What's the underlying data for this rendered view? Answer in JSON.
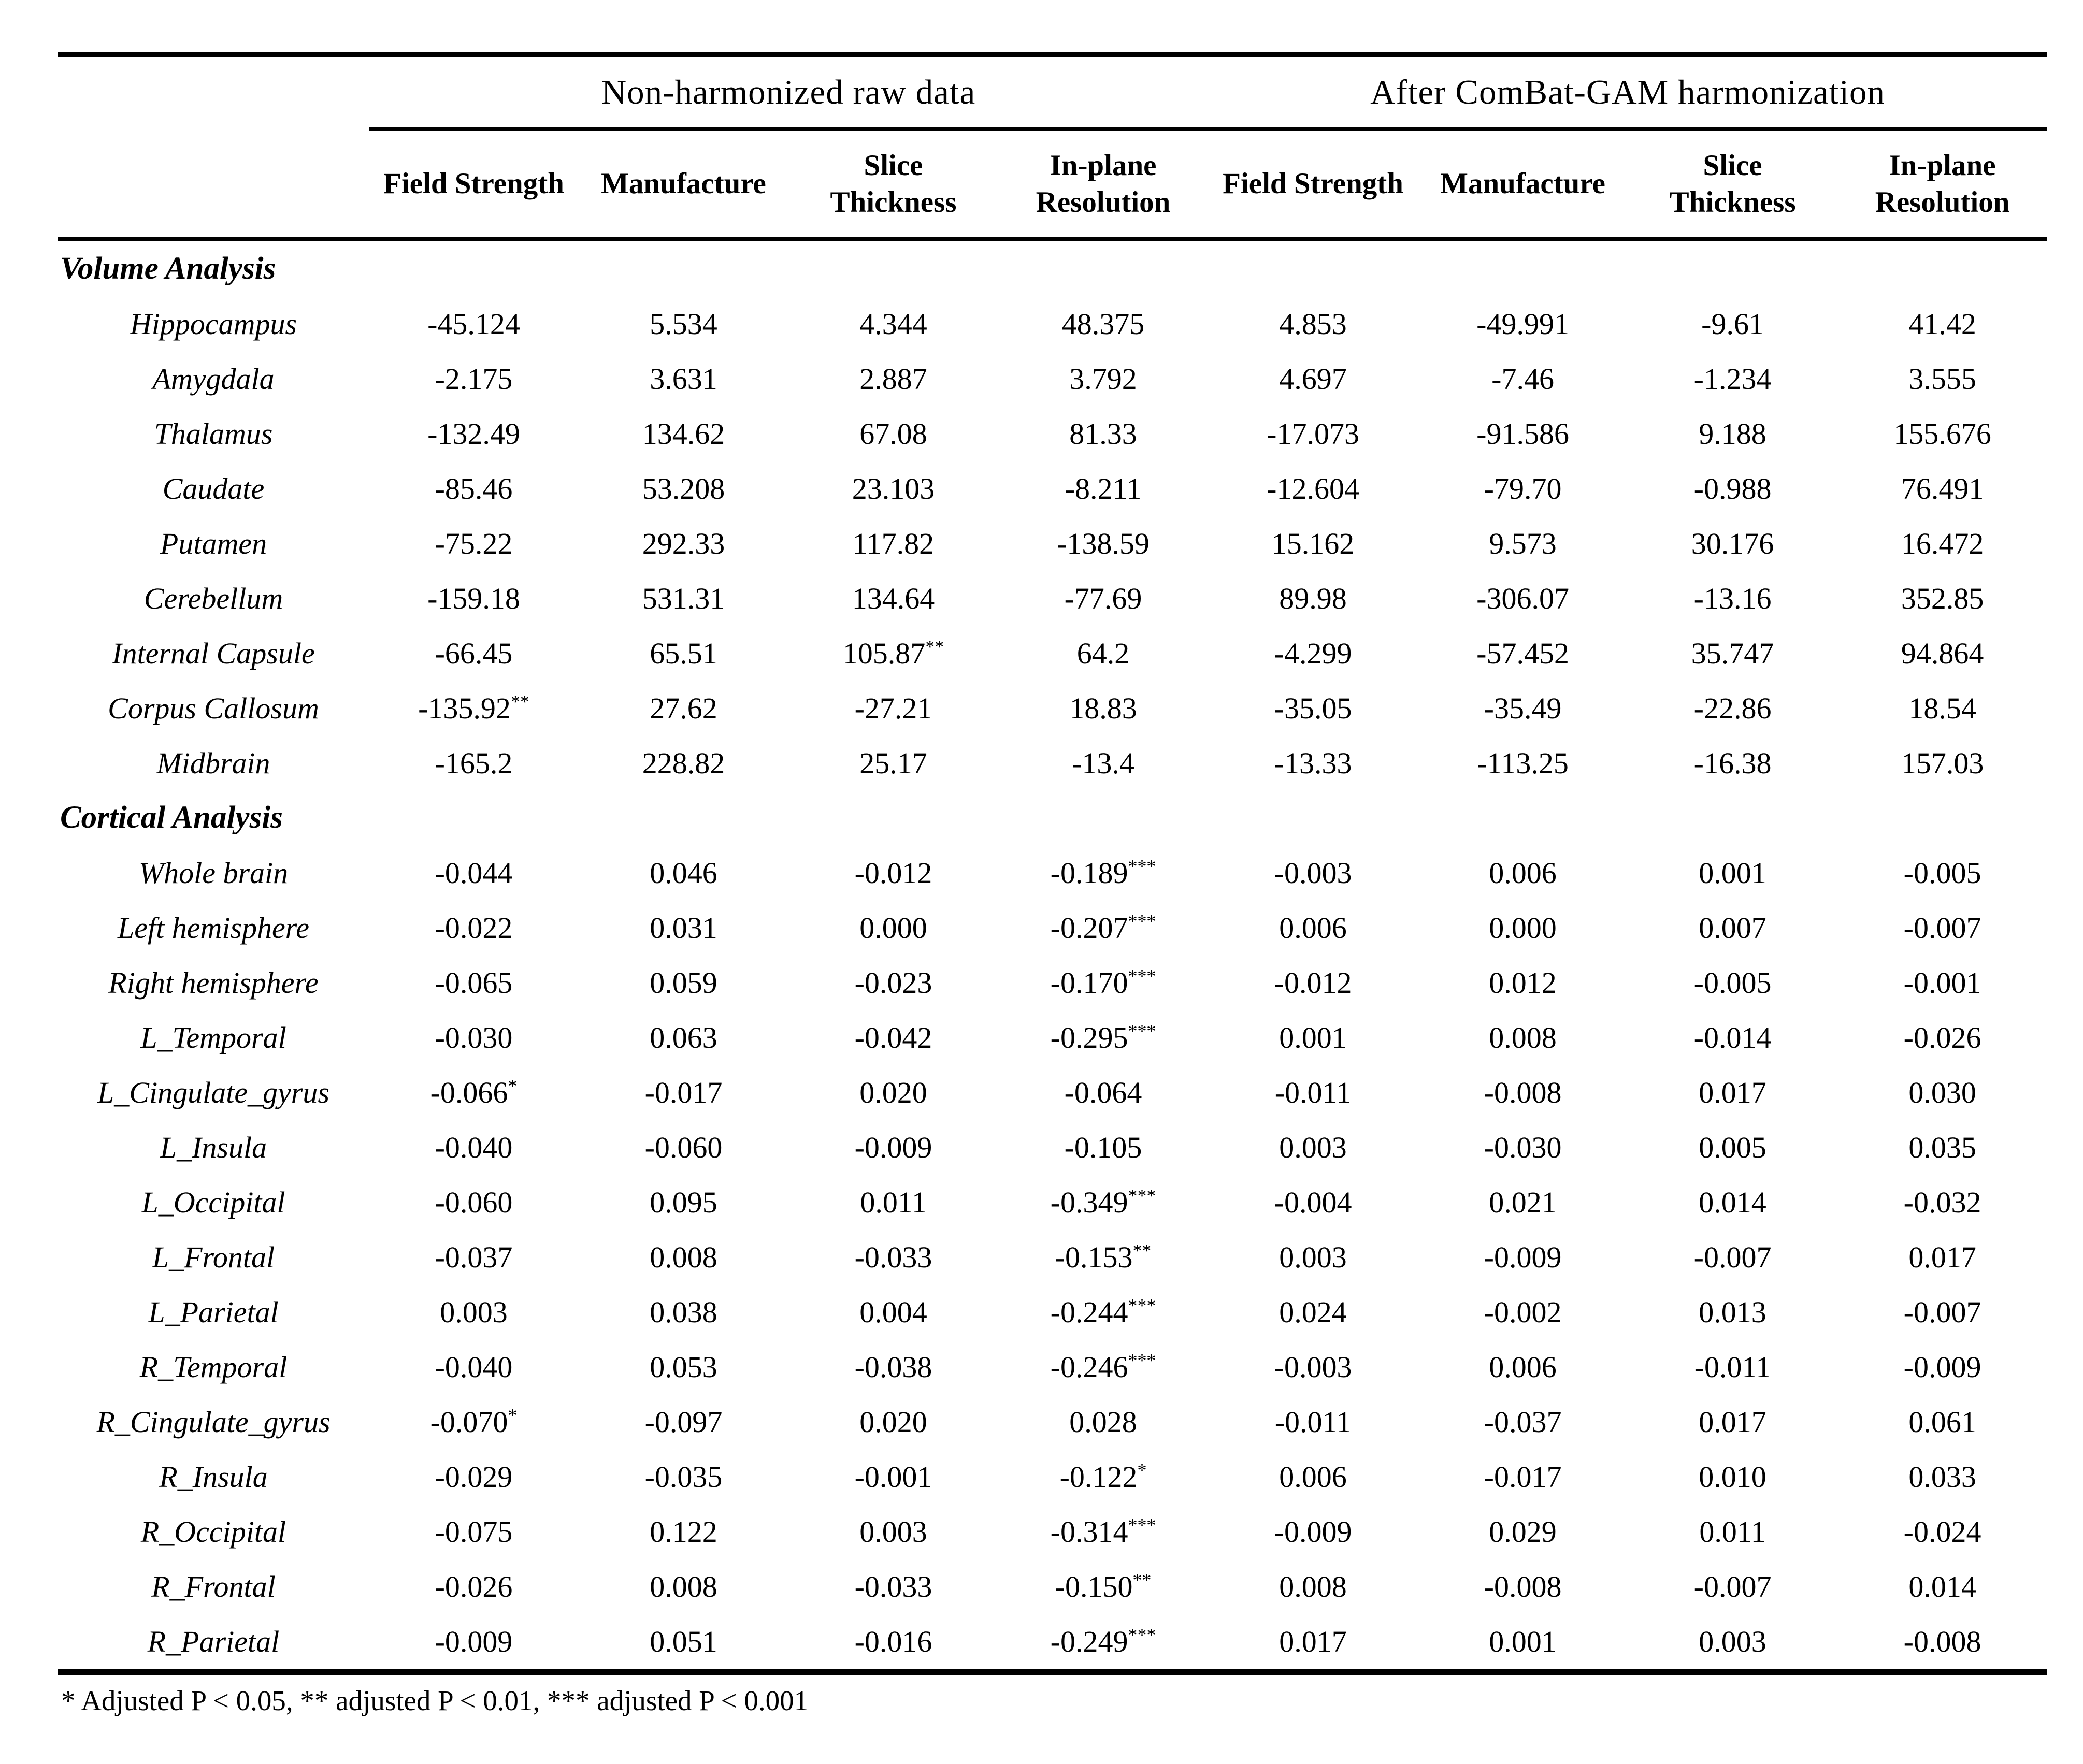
{
  "table": {
    "group_headers": [
      {
        "label": "Non-harmonized raw data",
        "colspan": 4
      },
      {
        "label": "After ComBat-GAM harmonization",
        "colspan": 4
      }
    ],
    "column_headers": [
      "Field Strength",
      "Manufacture",
      "Slice Thickness",
      "In-plane Resolution",
      "Field Strength",
      "Manufacture",
      "Slice Thickness",
      "In-plane Resolution"
    ],
    "sections": [
      {
        "title": "Volume Analysis",
        "rows": [
          {
            "label": "Hippocampus",
            "values": [
              "-45.124",
              "5.534",
              "4.344",
              "48.375",
              "4.853",
              "-49.991",
              "-9.61",
              "41.42"
            ]
          },
          {
            "label": "Amygdala",
            "values": [
              "-2.175",
              "3.631",
              "2.887",
              "3.792",
              "4.697",
              "-7.46",
              "-1.234",
              "3.555"
            ]
          },
          {
            "label": "Thalamus",
            "values": [
              "-132.49",
              "134.62",
              "67.08",
              "81.33",
              "-17.073",
              "-91.586",
              "9.188",
              "155.676"
            ]
          },
          {
            "label": "Caudate",
            "values": [
              "-85.46",
              "53.208",
              "23.103",
              "-8.211",
              "-12.604",
              "-79.70",
              "-0.988",
              "76.491"
            ]
          },
          {
            "label": "Putamen",
            "values": [
              "-75.22",
              "292.33",
              "117.82",
              "-138.59",
              "15.162",
              "9.573",
              "30.176",
              "16.472"
            ]
          },
          {
            "label": "Cerebellum",
            "values": [
              "-159.18",
              "531.31",
              "134.64",
              "-77.69",
              "89.98",
              "-306.07",
              "-13.16",
              "352.85"
            ]
          },
          {
            "label": "Internal Capsule",
            "values": [
              "-66.45",
              "65.51",
              "105.87**",
              "64.2",
              "-4.299",
              "-57.452",
              "35.747",
              "94.864"
            ]
          },
          {
            "label": "Corpus Callosum",
            "values": [
              "-135.92**",
              "27.62",
              "-27.21",
              "18.83",
              "-35.05",
              "-35.49",
              "-22.86",
              "18.54"
            ]
          },
          {
            "label": "Midbrain",
            "values": [
              "-165.2",
              "228.82",
              "25.17",
              "-13.4",
              "-13.33",
              "-113.25",
              "-16.38",
              "157.03"
            ]
          }
        ]
      },
      {
        "title": "Cortical Analysis",
        "rows": [
          {
            "label": "Whole brain",
            "values": [
              "-0.044",
              "0.046",
              "-0.012",
              "-0.189***",
              "-0.003",
              "0.006",
              "0.001",
              "-0.005"
            ]
          },
          {
            "label": "Left hemisphere",
            "values": [
              "-0.022",
              "0.031",
              "0.000",
              "-0.207***",
              "0.006",
              "0.000",
              "0.007",
              "-0.007"
            ]
          },
          {
            "label": "Right hemisphere",
            "values": [
              "-0.065",
              "0.059",
              "-0.023",
              "-0.170***",
              "-0.012",
              "0.012",
              "-0.005",
              "-0.001"
            ]
          },
          {
            "label": "L_Temporal",
            "values": [
              "-0.030",
              "0.063",
              "-0.042",
              "-0.295***",
              "0.001",
              "0.008",
              "-0.014",
              "-0.026"
            ]
          },
          {
            "label": "L_Cingulate_gyrus",
            "values": [
              "-0.066*",
              "-0.017",
              "0.020",
              "-0.064",
              "-0.011",
              "-0.008",
              "0.017",
              "0.030"
            ]
          },
          {
            "label": "L_Insula",
            "values": [
              "-0.040",
              "-0.060",
              "-0.009",
              "-0.105",
              "0.003",
              "-0.030",
              "0.005",
              "0.035"
            ]
          },
          {
            "label": "L_Occipital",
            "values": [
              "-0.060",
              "0.095",
              "0.011",
              "-0.349***",
              "-0.004",
              "0.021",
              "0.014",
              "-0.032"
            ]
          },
          {
            "label": "L_Frontal",
            "values": [
              "-0.037",
              "0.008",
              "-0.033",
              "-0.153**",
              "0.003",
              "-0.009",
              "-0.007",
              "0.017"
            ]
          },
          {
            "label": "L_Parietal",
            "values": [
              "0.003",
              "0.038",
              "0.004",
              "-0.244***",
              "0.024",
              "-0.002",
              "0.013",
              "-0.007"
            ]
          },
          {
            "label": "R_Temporal",
            "values": [
              "-0.040",
              "0.053",
              "-0.038",
              "-0.246***",
              "-0.003",
              "0.006",
              "-0.011",
              "-0.009"
            ]
          },
          {
            "label": "R_Cingulate_gyrus",
            "values": [
              "-0.070*",
              "-0.097",
              "0.020",
              "0.028",
              "-0.011",
              "-0.037",
              "0.017",
              "0.061"
            ]
          },
          {
            "label": "R_Insula",
            "values": [
              "-0.029",
              "-0.035",
              "-0.001",
              "-0.122*",
              "0.006",
              "-0.017",
              "0.010",
              "0.033"
            ]
          },
          {
            "label": "R_Occipital",
            "values": [
              "-0.075",
              "0.122",
              "0.003",
              "-0.314***",
              "-0.009",
              "0.029",
              "0.011",
              "-0.024"
            ]
          },
          {
            "label": "R_Frontal",
            "values": [
              "-0.026",
              "0.008",
              "-0.033",
              "-0.150**",
              "0.008",
              "-0.008",
              "-0.007",
              "0.014"
            ]
          },
          {
            "label": "R_Parietal",
            "values": [
              "-0.009",
              "0.051",
              "-0.016",
              "-0.249***",
              "0.017",
              "0.001",
              "0.003",
              "-0.008"
            ]
          }
        ]
      }
    ],
    "footnote": "* Adjusted P < 0.05, ** adjusted P < 0.01, *** adjusted P < 0.001"
  }
}
